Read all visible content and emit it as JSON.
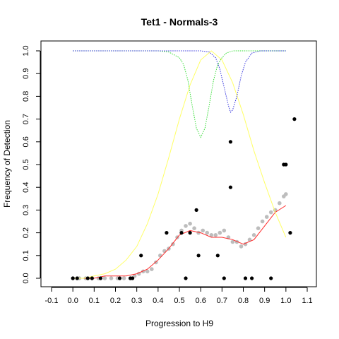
{
  "chart_data": {
    "type": "scatter",
    "title": "Tet1 - Normals-3",
    "xlabel": "Progression to H9",
    "ylabel": "Frequency of Detection",
    "xlim": [
      -0.1,
      1.1
    ],
    "ylim": [
      0.0,
      1.0
    ],
    "x_ticks": [
      "-0.1",
      "0.0",
      "0.1",
      "0.2",
      "0.3",
      "0.4",
      "0.5",
      "0.6",
      "0.7",
      "0.8",
      "0.9",
      "1.0",
      "1.1"
    ],
    "y_ticks": [
      "0.0",
      "0.1",
      "0.2",
      "0.3",
      "0.4",
      "0.5",
      "0.6",
      "0.7",
      "0.8",
      "0.9",
      "1.0"
    ],
    "grid": false,
    "colors": {
      "observed": "#000000",
      "smoothed_points": "#bdbdbd",
      "fit": "#ff2a2a",
      "yellow_curve": "#ffff66",
      "green_curve": "#33dd33",
      "blue_curve": "#3333dd"
    },
    "series": [
      {
        "kind": "points",
        "style": "observed",
        "x": [
          0.0,
          0.02,
          0.07,
          0.09,
          0.13,
          0.22,
          0.27,
          0.28,
          0.32,
          0.44,
          0.51,
          0.53,
          0.55,
          0.58,
          0.59,
          0.68,
          0.71,
          0.74,
          0.74,
          0.81,
          0.84,
          0.93,
          0.99,
          1.0,
          1.02,
          1.04
        ],
        "y": [
          0.0,
          0.0,
          0.0,
          0.0,
          0.0,
          0.0,
          0.0,
          0.0,
          0.1,
          0.2,
          0.2,
          0.0,
          0.2,
          0.3,
          0.1,
          0.1,
          0.0,
          0.6,
          0.4,
          0.0,
          0.0,
          0.0,
          0.5,
          0.5,
          0.2,
          0.7
        ]
      },
      {
        "kind": "points",
        "style": "smoothed_points",
        "x": [
          0.0,
          0.03,
          0.06,
          0.09,
          0.12,
          0.15,
          0.18,
          0.21,
          0.24,
          0.27,
          0.29,
          0.31,
          0.33,
          0.35,
          0.37,
          0.39,
          0.41,
          0.43,
          0.45,
          0.47,
          0.49,
          0.51,
          0.53,
          0.55,
          0.57,
          0.59,
          0.61,
          0.63,
          0.65,
          0.67,
          0.69,
          0.71,
          0.73,
          0.75,
          0.77,
          0.79,
          0.81,
          0.83,
          0.85,
          0.87,
          0.89,
          0.91,
          0.93,
          0.95,
          0.97,
          0.99,
          1.0
        ],
        "y": [
          0.0,
          0.0,
          0.0,
          0.0,
          0.0,
          0.0,
          0.0,
          0.0,
          0.0,
          0.0,
          0.01,
          0.02,
          0.03,
          0.03,
          0.04,
          0.07,
          0.1,
          0.12,
          0.13,
          0.15,
          0.18,
          0.21,
          0.23,
          0.24,
          0.22,
          0.2,
          0.21,
          0.2,
          0.19,
          0.19,
          0.2,
          0.21,
          0.18,
          0.16,
          0.16,
          0.14,
          0.15,
          0.17,
          0.19,
          0.22,
          0.25,
          0.27,
          0.29,
          0.3,
          0.33,
          0.36,
          0.37
        ]
      },
      {
        "kind": "line",
        "style": "fit",
        "x": [
          0.0,
          0.05,
          0.1,
          0.15,
          0.2,
          0.25,
          0.3,
          0.35,
          0.4,
          0.45,
          0.5,
          0.55,
          0.6,
          0.65,
          0.7,
          0.75,
          0.8,
          0.85,
          0.9,
          0.95,
          1.0
        ],
        "y": [
          0.0,
          0.0,
          0.0,
          0.01,
          0.01,
          0.01,
          0.02,
          0.04,
          0.08,
          0.13,
          0.19,
          0.21,
          0.2,
          0.18,
          0.18,
          0.17,
          0.15,
          0.17,
          0.23,
          0.29,
          0.32
        ]
      },
      {
        "kind": "line",
        "style": "yellow_curve",
        "x": [
          0.0,
          0.05,
          0.1,
          0.15,
          0.2,
          0.25,
          0.3,
          0.35,
          0.4,
          0.45,
          0.5,
          0.55,
          0.6,
          0.65,
          0.7,
          0.75,
          0.8,
          0.85,
          0.9,
          0.95,
          1.0
        ],
        "y": [
          0.0,
          0.0,
          0.01,
          0.02,
          0.04,
          0.08,
          0.14,
          0.24,
          0.37,
          0.53,
          0.7,
          0.85,
          0.96,
          1.0,
          0.96,
          0.86,
          0.72,
          0.56,
          0.42,
          0.29,
          0.18
        ]
      },
      {
        "kind": "line",
        "style": "green_curve",
        "x": [
          0.0,
          0.1,
          0.2,
          0.3,
          0.4,
          0.45,
          0.5,
          0.52,
          0.54,
          0.56,
          0.58,
          0.6,
          0.62,
          0.64,
          0.66,
          0.68,
          0.7,
          0.72,
          0.75,
          0.8,
          0.9,
          1.0
        ],
        "y": [
          1.0,
          1.0,
          1.0,
          1.0,
          1.0,
          0.995,
          0.97,
          0.94,
          0.87,
          0.76,
          0.66,
          0.62,
          0.66,
          0.76,
          0.87,
          0.94,
          0.97,
          0.99,
          1.0,
          1.0,
          1.0,
          1.0
        ]
      },
      {
        "kind": "line",
        "style": "blue_curve",
        "x": [
          0.0,
          0.2,
          0.4,
          0.55,
          0.6,
          0.64,
          0.67,
          0.69,
          0.71,
          0.73,
          0.74,
          0.75,
          0.77,
          0.79,
          0.81,
          0.84,
          0.88,
          0.95,
          1.0
        ],
        "y": [
          1.0,
          1.0,
          1.0,
          1.0,
          1.0,
          0.995,
          0.97,
          0.92,
          0.84,
          0.76,
          0.73,
          0.74,
          0.8,
          0.89,
          0.95,
          0.99,
          1.0,
          1.0,
          1.0
        ]
      }
    ]
  }
}
